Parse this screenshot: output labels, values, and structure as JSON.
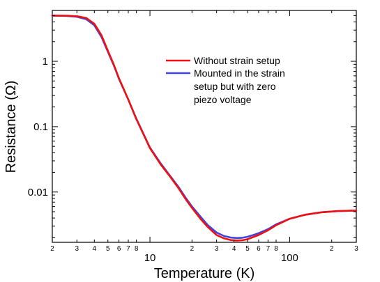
{
  "chart_data": {
    "type": "line",
    "xlabel": "Temperature (K)",
    "ylabel": "Resistance (Ω)",
    "x_scale": "log",
    "y_scale": "log",
    "xlim": [
      2,
      300
    ],
    "ylim": [
      0.0017,
      6
    ],
    "x_major_ticks": [
      {
        "value": 10,
        "label": "10"
      },
      {
        "value": 100,
        "label": "100"
      }
    ],
    "x_minor_ticks": [
      {
        "value": 2,
        "label": "2"
      },
      {
        "value": 3,
        "label": "3"
      },
      {
        "value": 4,
        "label": "4"
      },
      {
        "value": 5,
        "label": "5"
      },
      {
        "value": 6,
        "label": "6"
      },
      {
        "value": 7,
        "label": "7"
      },
      {
        "value": 8,
        "label": "8"
      },
      {
        "value": 20,
        "label": "2"
      },
      {
        "value": 30,
        "label": "3"
      },
      {
        "value": 40,
        "label": "4"
      },
      {
        "value": 50,
        "label": "5"
      },
      {
        "value": 60,
        "label": "6"
      },
      {
        "value": 70,
        "label": "7"
      },
      {
        "value": 80,
        "label": "8"
      },
      {
        "value": 200,
        "label": "2"
      },
      {
        "value": 300,
        "label": "3"
      }
    ],
    "y_major_ticks": [
      {
        "value": 0.01,
        "label": "0.01"
      },
      {
        "value": 0.1,
        "label": "0.1"
      },
      {
        "value": 1,
        "label": "1"
      }
    ],
    "legend_position": "upper-right",
    "series": [
      {
        "name": "Without strain setup",
        "color": "#ee1111",
        "x": [
          2,
          2.5,
          3,
          3.5,
          4,
          4.5,
          5,
          5.5,
          6,
          7,
          8,
          9,
          10,
          12,
          14,
          16,
          18,
          20,
          23,
          26,
          30,
          34,
          38,
          42,
          46,
          50,
          55,
          60,
          70,
          80,
          100,
          130,
          170,
          220,
          300
        ],
        "y": [
          5.0,
          4.98,
          4.9,
          4.6,
          3.75,
          2.5,
          1.45,
          0.9,
          0.55,
          0.26,
          0.13,
          0.076,
          0.047,
          0.026,
          0.017,
          0.0115,
          0.0078,
          0.0057,
          0.0039,
          0.0029,
          0.0022,
          0.00195,
          0.00184,
          0.00181,
          0.00183,
          0.0019,
          0.00205,
          0.0022,
          0.0026,
          0.0031,
          0.0039,
          0.0045,
          0.0049,
          0.0051,
          0.0052
        ]
      },
      {
        "name": "Mounted in the strain setup but with zero piezo voltage",
        "color": "#4444dd",
        "x": [
          2,
          2.5,
          3,
          3.5,
          4,
          4.5,
          5,
          5.5,
          6,
          7,
          8,
          9,
          10,
          12,
          14,
          16,
          18,
          20,
          23,
          26,
          30,
          34,
          38,
          42,
          46,
          50,
          55,
          60,
          70,
          80,
          100,
          130,
          170,
          220,
          300
        ],
        "y": [
          5.0,
          4.95,
          4.8,
          4.4,
          3.55,
          2.35,
          1.4,
          0.88,
          0.54,
          0.26,
          0.132,
          0.077,
          0.048,
          0.027,
          0.0175,
          0.012,
          0.0082,
          0.006,
          0.0042,
          0.0031,
          0.0024,
          0.00212,
          0.00201,
          0.00198,
          0.002,
          0.00207,
          0.0022,
          0.00235,
          0.0027,
          0.0032,
          0.0039,
          0.0045,
          0.0049,
          0.0051,
          0.0052
        ]
      }
    ]
  }
}
